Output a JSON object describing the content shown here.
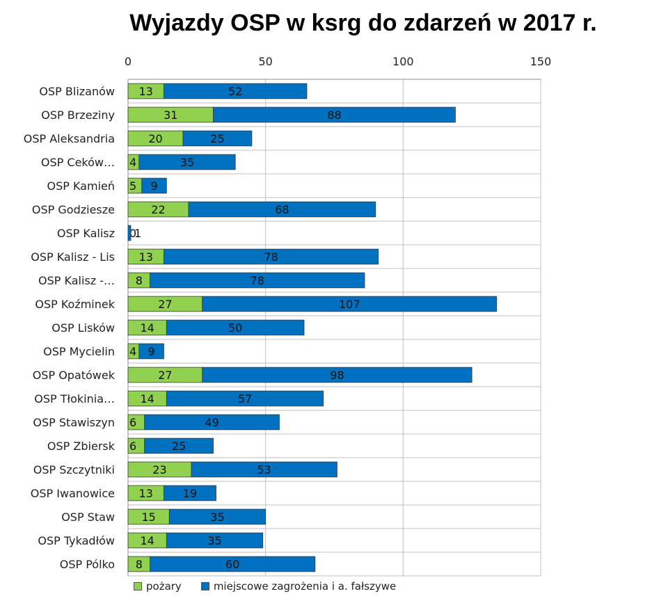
{
  "chart_data": {
    "type": "bar",
    "orientation": "horizontal",
    "stacked": true,
    "title": "Wyjazdy OSP w ksrg do zdarzeń w 2017 r.",
    "xlim": [
      0,
      150
    ],
    "x_ticks": [
      0,
      50,
      100,
      150
    ],
    "x_axis_position": "top",
    "grid": true,
    "legend_position": "bottom",
    "categories": [
      "OSP Blizanów",
      "OSP Brzeziny",
      "OSP  Aleksandria",
      "OSP Ceków…",
      "OSP Kamień",
      "OSP Godziesze",
      "OSP Kalisz",
      "OSP Kalisz - Lis",
      "OSP Kalisz -…",
      "OSP Koźminek",
      "OSP Lisków",
      "OSP Mycielin",
      "OSP Opatówek",
      "OSP Tłokinia…",
      "OSP Stawiszyn",
      "OSP Zbiersk",
      "OSP Szczytniki",
      "OSP Iwanowice",
      "OSP Staw",
      "OSP Tykadłów",
      "OSP Pólko"
    ],
    "series": [
      {
        "name": "pożary",
        "color": "#92d050",
        "values": [
          13,
          31,
          20,
          4,
          5,
          22,
          0,
          13,
          8,
          27,
          14,
          4,
          27,
          14,
          6,
          6,
          23,
          13,
          15,
          14,
          8
        ]
      },
      {
        "name": "miejscowe zagrożenia i a. fałszywe",
        "color": "#0070c0",
        "values": [
          52,
          88,
          25,
          35,
          9,
          68,
          1,
          78,
          78,
          107,
          50,
          9,
          98,
          57,
          49,
          25,
          53,
          19,
          35,
          35,
          60
        ]
      }
    ]
  }
}
